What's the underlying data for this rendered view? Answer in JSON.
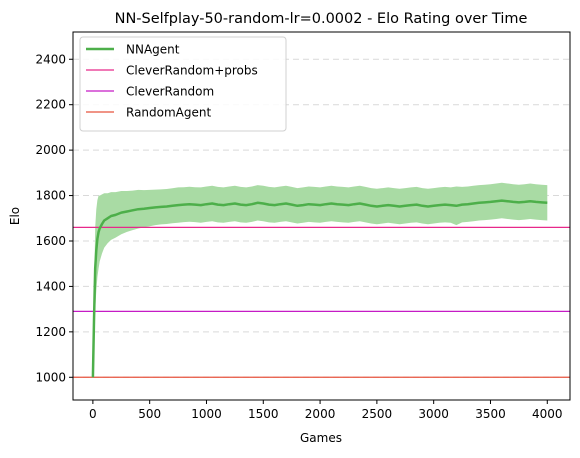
{
  "chart_data": {
    "type": "line",
    "title": "NN-Selfplay-50-random-lr=0.0002 - Elo Rating over Time",
    "xlabel": "Games",
    "ylabel": "Elo",
    "xlim": [
      -175,
      4200
    ],
    "ylim": [
      900,
      2520
    ],
    "xticks": [
      0,
      500,
      1000,
      1500,
      2000,
      2500,
      3000,
      3500,
      4000
    ],
    "yticks": [
      1000,
      1200,
      1400,
      1600,
      1800,
      2000,
      2200,
      2400
    ],
    "grid": "y-dashed",
    "legend_position": "top-left",
    "series": [
      {
        "name": "NNAgent",
        "kind": "line-with-band",
        "color": "#4daf4a",
        "band_color": "#a9dba4",
        "x": [
          0,
          10,
          20,
          30,
          40,
          50,
          60,
          80,
          100,
          130,
          160,
          200,
          250,
          300,
          350,
          400,
          450,
          500,
          550,
          600,
          650,
          700,
          750,
          800,
          850,
          900,
          950,
          1000,
          1050,
          1100,
          1150,
          1200,
          1250,
          1300,
          1350,
          1400,
          1450,
          1500,
          1550,
          1600,
          1650,
          1700,
          1750,
          1800,
          1850,
          1900,
          1950,
          2000,
          2050,
          2100,
          2150,
          2200,
          2250,
          2300,
          2350,
          2400,
          2450,
          2500,
          2550,
          2600,
          2650,
          2700,
          2750,
          2800,
          2850,
          2900,
          2950,
          3000,
          3050,
          3100,
          3150,
          3200,
          3250,
          3300,
          3350,
          3400,
          3450,
          3500,
          3550,
          3600,
          3650,
          3700,
          3750,
          3800,
          3850,
          3900,
          3950,
          4000
        ],
        "values": [
          1000,
          1250,
          1480,
          1560,
          1610,
          1640,
          1655,
          1675,
          1690,
          1700,
          1710,
          1715,
          1725,
          1730,
          1735,
          1740,
          1742,
          1745,
          1748,
          1750,
          1752,
          1755,
          1758,
          1760,
          1762,
          1760,
          1758,
          1762,
          1765,
          1760,
          1758,
          1762,
          1765,
          1760,
          1758,
          1762,
          1768,
          1765,
          1760,
          1758,
          1762,
          1765,
          1760,
          1755,
          1758,
          1762,
          1760,
          1758,
          1762,
          1765,
          1762,
          1760,
          1758,
          1762,
          1765,
          1760,
          1755,
          1752,
          1755,
          1758,
          1755,
          1752,
          1755,
          1758,
          1760,
          1755,
          1752,
          1755,
          1758,
          1760,
          1758,
          1755,
          1760,
          1762,
          1765,
          1768,
          1770,
          1772,
          1775,
          1778,
          1775,
          1772,
          1770,
          1772,
          1775,
          1772,
          1770,
          1768
        ],
        "lower": [
          1000,
          1140,
          1300,
          1380,
          1440,
          1480,
          1510,
          1545,
          1570,
          1590,
          1605,
          1615,
          1630,
          1640,
          1648,
          1655,
          1660,
          1665,
          1670,
          1673,
          1675,
          1678,
          1680,
          1683,
          1685,
          1683,
          1680,
          1684,
          1687,
          1682,
          1680,
          1684,
          1687,
          1682,
          1680,
          1684,
          1690,
          1687,
          1682,
          1680,
          1684,
          1687,
          1682,
          1677,
          1680,
          1684,
          1682,
          1680,
          1684,
          1687,
          1684,
          1682,
          1680,
          1684,
          1687,
          1682,
          1677,
          1674,
          1677,
          1680,
          1677,
          1674,
          1677,
          1680,
          1682,
          1677,
          1674,
          1677,
          1680,
          1682,
          1680,
          1670,
          1682,
          1684,
          1687,
          1690,
          1692,
          1694,
          1697,
          1700,
          1697,
          1694,
          1692,
          1694,
          1697,
          1694,
          1692,
          1690
        ],
        "upper": [
          1000,
          1360,
          1660,
          1740,
          1780,
          1800,
          1800,
          1805,
          1810,
          1810,
          1815,
          1815,
          1820,
          1820,
          1822,
          1825,
          1824,
          1825,
          1826,
          1827,
          1829,
          1832,
          1836,
          1837,
          1839,
          1837,
          1836,
          1840,
          1843,
          1838,
          1836,
          1840,
          1843,
          1838,
          1836,
          1840,
          1846,
          1843,
          1838,
          1836,
          1840,
          1843,
          1838,
          1833,
          1836,
          1840,
          1838,
          1836,
          1840,
          1843,
          1840,
          1838,
          1836,
          1840,
          1843,
          1838,
          1833,
          1830,
          1833,
          1836,
          1833,
          1830,
          1833,
          1836,
          1838,
          1833,
          1830,
          1833,
          1836,
          1838,
          1836,
          1840,
          1838,
          1840,
          1843,
          1846,
          1848,
          1850,
          1853,
          1856,
          1853,
          1850,
          1848,
          1850,
          1853,
          1850,
          1848,
          1846
        ]
      },
      {
        "name": "CleverRandom+probs",
        "kind": "hline",
        "value": 1660,
        "color": "#e7298a"
      },
      {
        "name": "CleverRandom",
        "kind": "hline",
        "value": 1290,
        "color": "#c51bc5"
      },
      {
        "name": "RandomAgent",
        "kind": "hline",
        "value": 1000,
        "color": "#e8543f"
      }
    ]
  }
}
